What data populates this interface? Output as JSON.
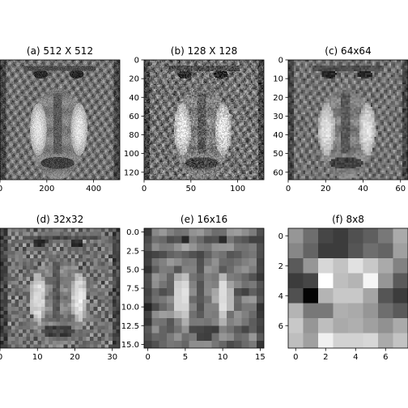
{
  "chart_data": [
    {
      "type": "heatmap",
      "title": "(a) 512 X 512",
      "resolution": 512,
      "x_ticks": [
        0,
        200,
        400
      ],
      "y_ticks": [],
      "xlim": [
        0,
        512
      ],
      "ylim": [
        512,
        0
      ],
      "colormap": "gray"
    },
    {
      "type": "heatmap",
      "title": "(b) 128 X 128",
      "resolution": 128,
      "x_ticks": [
        0,
        50,
        100
      ],
      "y_ticks": [
        0,
        20,
        40,
        60,
        80,
        100,
        120
      ],
      "xlim": [
        0,
        128
      ],
      "ylim": [
        128,
        0
      ],
      "colormap": "gray"
    },
    {
      "type": "heatmap",
      "title": "(c) 64x64",
      "resolution": 64,
      "x_ticks": [
        0,
        20,
        40,
        60
      ],
      "y_ticks": [
        0,
        10,
        20,
        30,
        40,
        50,
        60
      ],
      "xlim": [
        0,
        64
      ],
      "ylim": [
        64,
        0
      ],
      "colormap": "gray"
    },
    {
      "type": "heatmap",
      "title": "(d) 32x32",
      "resolution": 32,
      "x_ticks": [
        0,
        10,
        20,
        30
      ],
      "y_ticks": [],
      "xlim": [
        0,
        32
      ],
      "ylim": [
        32,
        0
      ],
      "colormap": "gray"
    },
    {
      "type": "heatmap",
      "title": "(e) 16x16",
      "resolution": 16,
      "x_ticks": [
        0,
        5,
        10,
        15
      ],
      "y_ticks": [
        "0.0",
        "2.5",
        "5.0",
        "7.5",
        "10.0",
        "12.5",
        "15.0"
      ],
      "xlim": [
        -0.5,
        15.5
      ],
      "ylim": [
        15.5,
        -0.5
      ],
      "colormap": "gray"
    },
    {
      "type": "heatmap",
      "title": "(f) 8x8",
      "resolution": 8,
      "x_ticks": [
        0,
        2,
        4,
        6
      ],
      "y_ticks": [
        0,
        2,
        4,
        6
      ],
      "xlim": [
        -0.5,
        7.5
      ],
      "ylim": [
        7.5,
        -0.5
      ],
      "colormap": "gray",
      "values": [
        [
          150,
          110,
          70,
          60,
          80,
          95,
          120,
          170
        ],
        [
          135,
          100,
          60,
          60,
          85,
          110,
          100,
          160
        ],
        [
          90,
          150,
          215,
          195,
          225,
          200,
          170,
          130
        ],
        [
          60,
          70,
          255,
          190,
          180,
          245,
          150,
          90
        ],
        [
          80,
          5,
          180,
          200,
          200,
          165,
          85,
          60
        ],
        [
          180,
          120,
          120,
          175,
          170,
          150,
          110,
          90
        ],
        [
          200,
          150,
          190,
          170,
          175,
          160,
          145,
          170
        ],
        [
          190,
          160,
          240,
          210,
          210,
          215,
          170,
          195
        ]
      ]
    }
  ]
}
